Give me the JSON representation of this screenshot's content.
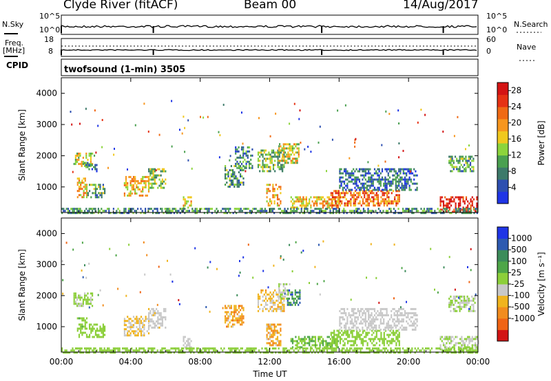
{
  "header": {
    "station": "Clyde River (fitACF)",
    "beam": "Beam 00",
    "date": "14/Aug/2017"
  },
  "strip_panels": {
    "nsky_label": "N.Sky",
    "nsky_ticks": [
      "10^5",
      "10^0"
    ],
    "nsearch_label": "N.Search",
    "nsearch_ticks": [
      "10^5",
      "10^0"
    ],
    "freq_label_1": "Freq.",
    "freq_label_2": "[MHz]",
    "freq_ticks": [
      "18",
      "8"
    ],
    "nave_label": "Nave",
    "nave_ticks": [
      "60",
      "0"
    ],
    "cpid_label": "CPID",
    "scan_mode": "twofsound (1-min) 3505"
  },
  "colors": {
    "power": [
      "#1f35e6",
      "#2d4fb0",
      "#3d7a6a",
      "#4aa050",
      "#8cd43c",
      "#f0c81e",
      "#f7961e",
      "#f06a14",
      "#e63214",
      "#d41414"
    ],
    "velocity": [
      "#1f35e6",
      "#2d5ab0",
      "#3c8c5a",
      "#4ea648",
      "#8ccf3a",
      "#c8c8c8",
      "#f0b41e",
      "#f28c1e",
      "#f06414",
      "#d21414"
    ]
  },
  "chart_data": [
    {
      "type": "heatmap",
      "title": "Power",
      "xlabel": "",
      "ylabel": "Slant Range [km]",
      "x_ticks": [
        "00:00",
        "04:00",
        "08:00",
        "12:00",
        "16:00",
        "20:00",
        "00:00"
      ],
      "y_ticks": [
        "1000",
        "2000",
        "3000",
        "4000"
      ],
      "xlim": [
        0,
        24
      ],
      "ylim": [
        180,
        4500
      ],
      "colorbar": {
        "label": "Power [dB]",
        "ticks": [
          "4",
          "8",
          "12",
          "16",
          "20",
          "24",
          "28"
        ],
        "range": [
          0,
          30
        ]
      },
      "regions": [
        {
          "t": [
            0.7,
            1.8
          ],
          "r": [
            1700,
            2100
          ],
          "v": 16
        },
        {
          "t": [
            1.3,
            2.0
          ],
          "r": [
            1500,
            1800
          ],
          "v": 8
        },
        {
          "t": [
            0.9,
            1.5
          ],
          "r": [
            700,
            1300
          ],
          "v": 18
        },
        {
          "t": [
            1.5,
            2.5
          ],
          "r": [
            700,
            1100
          ],
          "v": 10
        },
        {
          "t": [
            3.6,
            5.0
          ],
          "r": [
            750,
            1350
          ],
          "v": 18
        },
        {
          "t": [
            5.0,
            6.0
          ],
          "r": [
            1000,
            1600
          ],
          "v": 12
        },
        {
          "t": [
            7.0,
            7.5
          ],
          "r": [
            250,
            700
          ],
          "v": 18
        },
        {
          "t": [
            9.4,
            10.5
          ],
          "r": [
            1000,
            1700
          ],
          "v": 10
        },
        {
          "t": [
            10.0,
            11.0
          ],
          "r": [
            1600,
            2300
          ],
          "v": 8
        },
        {
          "t": [
            11.3,
            12.8
          ],
          "r": [
            1500,
            2200
          ],
          "v": 12
        },
        {
          "t": [
            12.5,
            13.7
          ],
          "r": [
            1800,
            2400
          ],
          "v": 16
        },
        {
          "t": [
            11.8,
            12.6
          ],
          "r": [
            400,
            1100
          ],
          "v": 18
        },
        {
          "t": [
            13.2,
            16.0
          ],
          "r": [
            350,
            700
          ],
          "v": 18
        },
        {
          "t": [
            15.5,
            19.5
          ],
          "r": [
            400,
            900
          ],
          "v": 22
        },
        {
          "t": [
            16.0,
            20.5
          ],
          "r": [
            900,
            1600
          ],
          "v": 6
        },
        {
          "t": [
            22.3,
            23.8
          ],
          "r": [
            1500,
            2000
          ],
          "v": 10
        },
        {
          "t": [
            21.8,
            24.0
          ],
          "r": [
            180,
            700
          ],
          "v": 28
        },
        {
          "t": [
            0.0,
            24.0
          ],
          "r": [
            180,
            330
          ],
          "v": 9
        }
      ]
    },
    {
      "type": "heatmap",
      "title": "Velocity",
      "xlabel": "Time UT",
      "ylabel": "Slant Range [km]",
      "x_ticks": [
        "00:00",
        "04:00",
        "08:00",
        "12:00",
        "16:00",
        "20:00",
        "00:00"
      ],
      "y_ticks": [
        "1000",
        "2000",
        "3000",
        "4000"
      ],
      "xlim": [
        0,
        24
      ],
      "ylim": [
        180,
        4500
      ],
      "colorbar": {
        "label": "Velocity [m s⁻¹]",
        "ticks": [
          "1000",
          "500",
          "100",
          "25",
          "-25",
          "-100",
          "-500",
          "-1000"
        ],
        "range": [
          -1500,
          1500
        ]
      },
      "regions": [
        {
          "t": [
            0.7,
            1.8
          ],
          "r": [
            1700,
            2100
          ],
          "v": 20
        },
        {
          "t": [
            0.9,
            1.5
          ],
          "r": [
            700,
            1300
          ],
          "v": 200
        },
        {
          "t": [
            1.5,
            2.5
          ],
          "r": [
            700,
            1100
          ],
          "v": 120
        },
        {
          "t": [
            3.6,
            5.0
          ],
          "r": [
            750,
            1350
          ],
          "v": -300
        },
        {
          "t": [
            5.0,
            6.0
          ],
          "r": [
            1000,
            1600
          ],
          "v": -200
        },
        {
          "t": [
            7.0,
            7.5
          ],
          "r": [
            250,
            700
          ],
          "v": -150
        },
        {
          "t": [
            9.4,
            10.5
          ],
          "r": [
            1000,
            1700
          ],
          "v": -600
        },
        {
          "t": [
            11.3,
            12.8
          ],
          "r": [
            1500,
            2200
          ],
          "v": -400
        },
        {
          "t": [
            12.5,
            13.2
          ],
          "r": [
            1900,
            2400
          ],
          "v": 10
        },
        {
          "t": [
            13.0,
            13.7
          ],
          "r": [
            1700,
            2200
          ],
          "v": 800
        },
        {
          "t": [
            11.8,
            12.6
          ],
          "r": [
            400,
            1100
          ],
          "v": -500
        },
        {
          "t": [
            13.2,
            16.0
          ],
          "r": [
            350,
            700
          ],
          "v": 300
        },
        {
          "t": [
            15.5,
            19.5
          ],
          "r": [
            400,
            900
          ],
          "v": 150
        },
        {
          "t": [
            16.0,
            20.5
          ],
          "r": [
            900,
            1600
          ],
          "v": -80
        },
        {
          "t": [
            22.3,
            23.8
          ],
          "r": [
            1500,
            2000
          ],
          "v": 5
        },
        {
          "t": [
            21.8,
            24.0
          ],
          "r": [
            180,
            700
          ],
          "v": 0
        },
        {
          "t": [
            0.0,
            24.0
          ],
          "r": [
            180,
            330
          ],
          "v": 120
        }
      ]
    }
  ]
}
